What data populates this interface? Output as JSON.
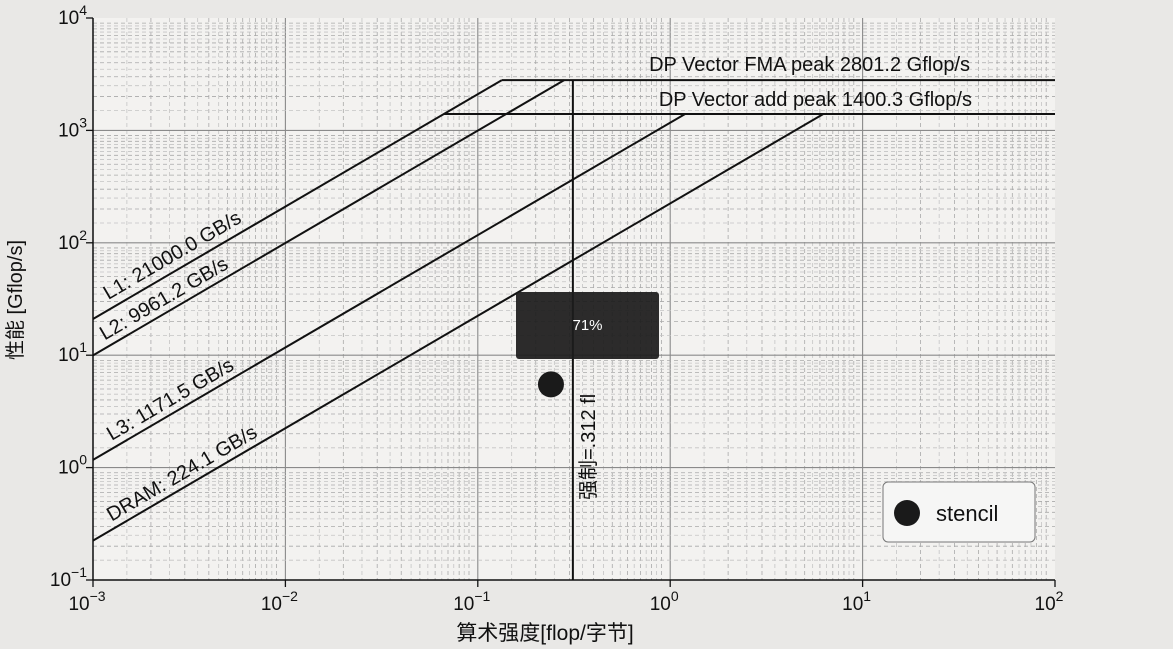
{
  "chart_data": {
    "type": "line",
    "xlabel": "算术强度[flop/字节]",
    "ylabel": "性能 [Gflop/s]",
    "xscale": "log",
    "yscale": "log",
    "xlim": [
      0.001,
      100
    ],
    "ylim": [
      0.1,
      10000
    ],
    "x_ticks": [
      {
        "value": 0.001,
        "base": "10",
        "exp": "−3"
      },
      {
        "value": 0.01,
        "base": "10",
        "exp": "−2"
      },
      {
        "value": 0.1,
        "base": "10",
        "exp": "−1"
      },
      {
        "value": 1,
        "base": "10",
        "exp": "0"
      },
      {
        "value": 10,
        "base": "10",
        "exp": "1"
      },
      {
        "value": 100,
        "base": "10",
        "exp": "2"
      }
    ],
    "y_ticks": [
      {
        "value": 0.1,
        "base": "10",
        "exp": "−1"
      },
      {
        "value": 1,
        "base": "10",
        "exp": "0"
      },
      {
        "value": 10,
        "base": "10",
        "exp": "1"
      },
      {
        "value": 100,
        "base": "10",
        "exp": "2"
      },
      {
        "value": 1000,
        "base": "10",
        "exp": "3"
      },
      {
        "value": 10000,
        "base": "10",
        "exp": "4"
      }
    ],
    "grid": true,
    "ceilings": [
      {
        "label": "DP Vector FMA peak 2801.2 Gflop/s",
        "value": 2801.2
      },
      {
        "label": "DP Vector add peak 1400.3 Gflop/s",
        "value": 1400.3
      }
    ],
    "bandwidths": [
      {
        "label": "L1: 21000.0 GB/s",
        "value": 21000.0
      },
      {
        "label": "L2: 9961.2 GB/s",
        "value": 9961.2
      },
      {
        "label": "L3: 1171.5 GB/s",
        "value": 1171.5
      },
      {
        "label": "DRAM: 224.1 GB/s",
        "value": 224.1
      }
    ],
    "vertical_line": {
      "x": 0.312,
      "label": "强制=.312 fl"
    },
    "series": [
      {
        "name": "stencil",
        "points": [
          {
            "x": 0.24,
            "y": 5.5
          }
        ]
      }
    ],
    "legend_position": "bottom-right"
  },
  "overlay": {
    "text": "71%"
  }
}
